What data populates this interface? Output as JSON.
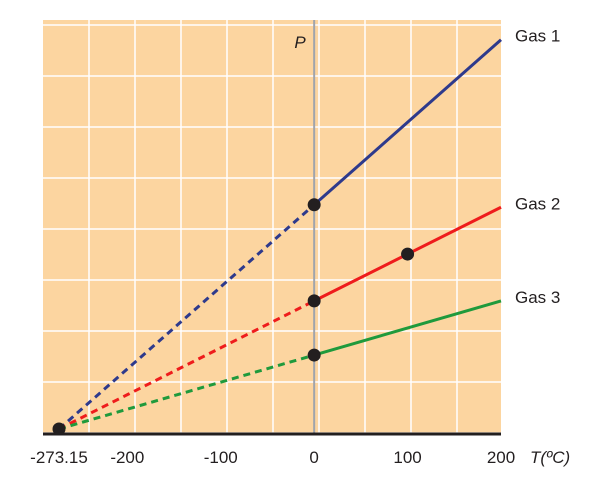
{
  "chart_data": {
    "type": "line",
    "xlabel": "T(ºC)",
    "ylabel": "P",
    "xlim": [
      -273.15,
      200
    ],
    "grid": true,
    "colors": {
      "background": "#fcd5a0",
      "grid": "#ffffff",
      "zero_line": "#9fa4ad",
      "axis": "#231f20",
      "point": "#231f20"
    },
    "x_ticks": [
      {
        "value": -273.15,
        "label": "-273.15"
      },
      {
        "value": -200,
        "label": "-200"
      },
      {
        "value": -100,
        "label": "-100"
      },
      {
        "value": 0,
        "label": "0"
      },
      {
        "value": 100,
        "label": "100"
      },
      {
        "value": 200,
        "label": "200"
      }
    ],
    "series": [
      {
        "name": "Gas 1",
        "color": "#2e3a8c",
        "x": [
          -273.15,
          0,
          200
        ],
        "y": [
          0,
          4.55,
          7.9
        ],
        "measured_from": 0,
        "points": [
          [
            0,
            4.55
          ]
        ]
      },
      {
        "name": "Gas 2",
        "color": "#ee1c1c",
        "x": [
          -273.15,
          0,
          200
        ],
        "y": [
          0,
          2.6,
          4.5
        ],
        "measured_from": 0,
        "points": [
          [
            0,
            2.6
          ],
          [
            100,
            3.55
          ]
        ]
      },
      {
        "name": "Gas 3",
        "color": "#1f9a3c",
        "x": [
          -273.15,
          0,
          200
        ],
        "y": [
          0,
          1.5,
          2.6
        ],
        "measured_from": 0,
        "points": [
          [
            0,
            1.5
          ]
        ]
      }
    ],
    "origin_point": [
      -273.15,
      0
    ]
  }
}
